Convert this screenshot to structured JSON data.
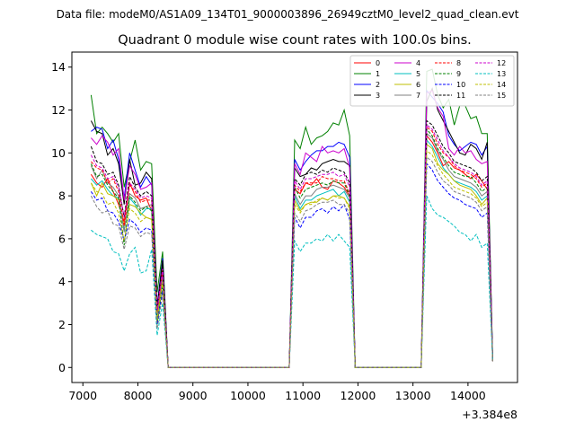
{
  "suptitle": "Data file: modeM0/AS1A09_134T01_9000003896_26949cztM0_level2_quad_clean.evt",
  "chart_data": {
    "type": "line",
    "title": "Quadrant 0 module wise count rates with 100.0s bins.",
    "xlabel": "",
    "ylabel": "",
    "offset_label": "+3.384e8",
    "xlim": [
      6800,
      14900
    ],
    "ylim": [
      -0.7,
      14.7
    ],
    "xticks": [
      7000,
      8000,
      9000,
      10000,
      11000,
      12000,
      13000,
      14000
    ],
    "yticks": [
      0,
      2,
      4,
      6,
      8,
      10,
      12,
      14
    ],
    "grid": false,
    "legend_position": "top-right",
    "legend_columns": 4,
    "x_start": 7150,
    "x_step": 100,
    "series": [
      {
        "name": "0",
        "color": "#ff0000",
        "dash": "solid",
        "values": [
          9.0,
          8.6,
          8.4,
          8.8,
          8.2,
          7.6,
          6.8,
          8.6,
          8.0,
          7.8,
          7.9,
          7.3,
          2.7,
          4.6,
          0,
          0,
          0,
          0,
          0,
          0,
          0,
          0,
          0,
          0,
          0,
          0,
          0,
          0,
          0,
          0,
          0,
          0,
          0,
          0,
          0,
          0,
          0,
          8.3,
          8.1,
          8.6,
          8.5,
          8.8,
          8.4,
          8.3,
          8.7,
          8.6,
          8.4,
          8.0,
          0,
          0,
          0,
          0,
          0,
          0,
          0,
          0,
          0,
          0,
          0,
          0,
          0,
          10.8,
          10.5,
          10.0,
          9.4,
          9.6,
          9.3,
          9.2,
          9.0,
          8.8,
          9.0,
          8.7,
          8.3,
          0.3
        ]
      },
      {
        "name": "1",
        "color": "#008000",
        "dash": "solid",
        "values": [
          12.7,
          10.9,
          11.2,
          10.9,
          10.5,
          10.9,
          8.4,
          9.6,
          10.6,
          9.2,
          9.6,
          9.5,
          3.5,
          5.4,
          0,
          0,
          0,
          0,
          0,
          0,
          0,
          0,
          0,
          0,
          0,
          0,
          0,
          0,
          0,
          0,
          0,
          0,
          0,
          0,
          0,
          0,
          0,
          10.6,
          10.2,
          11.2,
          10.4,
          10.7,
          10.8,
          11.0,
          11.4,
          11.3,
          12.0,
          10.8,
          0,
          0,
          0,
          0,
          0,
          0,
          0,
          0,
          0,
          0,
          0,
          0,
          0,
          13.8,
          13.9,
          12.7,
          12.1,
          12.5,
          11.3,
          12.2,
          12.2,
          11.6,
          11.7,
          10.9,
          10.9,
          0.4
        ]
      },
      {
        "name": "2",
        "color": "#0000ff",
        "dash": "solid",
        "values": [
          11.0,
          11.2,
          11.1,
          10.2,
          10.6,
          9.7,
          7.9,
          10.0,
          9.2,
          8.4,
          8.9,
          8.5,
          2.9,
          5.1,
          0,
          0,
          0,
          0,
          0,
          0,
          0,
          0,
          0,
          0,
          0,
          0,
          0,
          0,
          0,
          0,
          0,
          0,
          0,
          0,
          0,
          0,
          0,
          9.7,
          9.2,
          9.6,
          9.9,
          10.1,
          10.1,
          10.3,
          10.3,
          10.5,
          10.4,
          9.8,
          0,
          0,
          0,
          0,
          0,
          0,
          0,
          0,
          0,
          0,
          0,
          0,
          0,
          12.9,
          12.6,
          12.3,
          11.9,
          10.8,
          10.4,
          10.1,
          10.3,
          10.5,
          10.4,
          9.9,
          10.3,
          0.3
        ]
      },
      {
        "name": "3",
        "color": "#000000",
        "dash": "solid",
        "values": [
          11.5,
          11.0,
          10.9,
          9.9,
          10.2,
          9.5,
          7.6,
          9.7,
          8.5,
          8.6,
          9.1,
          8.8,
          2.8,
          5.0,
          0,
          0,
          0,
          0,
          0,
          0,
          0,
          0,
          0,
          0,
          0,
          0,
          0,
          0,
          0,
          0,
          0,
          0,
          0,
          0,
          0,
          0,
          0,
          9.3,
          8.9,
          9.0,
          9.3,
          9.2,
          9.5,
          9.6,
          9.7,
          9.6,
          9.6,
          9.4,
          0,
          0,
          0,
          0,
          0,
          0,
          0,
          0,
          0,
          0,
          0,
          0,
          0,
          12.4,
          13.0,
          12.0,
          11.5,
          11.0,
          10.5,
          10.0,
          9.9,
          10.4,
          10.2,
          9.7,
          10.5,
          0.3
        ]
      },
      {
        "name": "4",
        "color": "#cc00cc",
        "dash": "solid",
        "values": [
          10.7,
          10.4,
          10.8,
          10.5,
          9.9,
          10.2,
          7.8,
          9.4,
          9.0,
          8.3,
          8.4,
          8.6,
          2.7,
          4.4,
          0,
          0,
          0,
          0,
          0,
          0,
          0,
          0,
          0,
          0,
          0,
          0,
          0,
          0,
          0,
          0,
          0,
          0,
          0,
          0,
          0,
          0,
          0,
          9.5,
          9.0,
          10.0,
          9.8,
          9.6,
          10.3,
          10.0,
          10.1,
          10.0,
          10.2,
          9.3,
          0,
          0,
          0,
          0,
          0,
          0,
          0,
          0,
          0,
          0,
          0,
          0,
          0,
          12.8,
          12.9,
          12.1,
          11.7,
          10.2,
          9.9,
          10.3,
          10.0,
          10.1,
          9.7,
          9.5,
          9.6,
          0.3
        ]
      },
      {
        "name": "5",
        "color": "#00bfbf",
        "dash": "solid",
        "values": [
          8.8,
          8.5,
          8.7,
          8.3,
          8.0,
          7.9,
          6.4,
          7.9,
          7.6,
          7.1,
          7.4,
          7.4,
          2.2,
          4.1,
          0,
          0,
          0,
          0,
          0,
          0,
          0,
          0,
          0,
          0,
          0,
          0,
          0,
          0,
          0,
          0,
          0,
          0,
          0,
          0,
          0,
          0,
          0,
          8.0,
          7.4,
          7.8,
          7.8,
          8.0,
          8.1,
          8.2,
          8.3,
          8.0,
          8.2,
          7.7,
          0,
          0,
          0,
          0,
          0,
          0,
          0,
          0,
          0,
          0,
          0,
          0,
          0,
          10.6,
          10.3,
          9.8,
          9.3,
          9.0,
          8.7,
          8.6,
          8.5,
          8.4,
          8.2,
          7.8,
          8.0,
          0.3
        ]
      },
      {
        "name": "6",
        "color": "#bfbf00",
        "dash": "solid",
        "values": [
          8.6,
          8.0,
          8.6,
          8.1,
          8.0,
          7.8,
          6.6,
          7.6,
          7.5,
          7.2,
          7.0,
          6.9,
          2.3,
          4.0,
          0,
          0,
          0,
          0,
          0,
          0,
          0,
          0,
          0,
          0,
          0,
          0,
          0,
          0,
          0,
          0,
          0,
          0,
          0,
          0,
          0,
          0,
          0,
          7.8,
          7.3,
          7.6,
          7.7,
          7.7,
          7.9,
          7.8,
          8.0,
          8.0,
          7.9,
          7.5,
          0,
          0,
          0,
          0,
          0,
          0,
          0,
          0,
          0,
          0,
          0,
          0,
          0,
          10.4,
          10.2,
          9.5,
          9.2,
          9.0,
          8.7,
          8.5,
          8.4,
          8.3,
          8.0,
          7.6,
          7.9,
          0.3
        ]
      },
      {
        "name": "7",
        "color": "#808080",
        "dash": "solid",
        "values": [
          9.4,
          8.8,
          9.2,
          8.6,
          8.4,
          8.0,
          6.3,
          8.1,
          7.9,
          7.4,
          7.5,
          7.6,
          2.4,
          4.2,
          0,
          0,
          0,
          0,
          0,
          0,
          0,
          0,
          0,
          0,
          0,
          0,
          0,
          0,
          0,
          0,
          0,
          0,
          0,
          0,
          0,
          0,
          0,
          8.1,
          7.6,
          8.0,
          8.0,
          8.3,
          8.4,
          8.4,
          8.5,
          8.4,
          8.3,
          7.9,
          0,
          0,
          0,
          0,
          0,
          0,
          0,
          0,
          0,
          0,
          0,
          0,
          0,
          10.9,
          10.7,
          10.1,
          9.7,
          9.2,
          8.9,
          8.8,
          8.7,
          8.6,
          8.4,
          8.0,
          8.2,
          0.3
        ]
      },
      {
        "name": "8",
        "color": "#ff0000",
        "dash": "dashed",
        "values": [
          9.6,
          9.3,
          9.2,
          8.6,
          8.8,
          8.2,
          6.6,
          8.5,
          8.2,
          7.7,
          7.8,
          7.8,
          2.6,
          4.5,
          0,
          0,
          0,
          0,
          0,
          0,
          0,
          0,
          0,
          0,
          0,
          0,
          0,
          0,
          0,
          0,
          0,
          0,
          0,
          0,
          0,
          0,
          0,
          8.5,
          8.2,
          8.6,
          8.6,
          8.6,
          8.9,
          8.8,
          8.8,
          8.7,
          8.7,
          8.1,
          0,
          0,
          0,
          0,
          0,
          0,
          0,
          0,
          0,
          0,
          0,
          0,
          0,
          11.2,
          11.0,
          10.4,
          10.0,
          9.8,
          9.4,
          9.2,
          9.1,
          9.0,
          8.8,
          8.4,
          8.6,
          0.3
        ]
      },
      {
        "name": "9",
        "color": "#008000",
        "dash": "dashed",
        "values": [
          9.5,
          8.9,
          9.0,
          8.5,
          8.2,
          7.9,
          5.7,
          8.0,
          7.7,
          7.3,
          7.5,
          7.3,
          2.0,
          3.9,
          0,
          0,
          0,
          0,
          0,
          0,
          0,
          0,
          0,
          0,
          0,
          0,
          0,
          0,
          0,
          0,
          0,
          0,
          0,
          0,
          0,
          0,
          0,
          8.4,
          7.9,
          8.3,
          8.4,
          8.5,
          8.6,
          8.5,
          8.7,
          8.6,
          8.6,
          8.0,
          0,
          0,
          0,
          0,
          0,
          0,
          0,
          0,
          0,
          0,
          0,
          0,
          0,
          11.1,
          10.8,
          10.2,
          9.8,
          9.4,
          9.1,
          9.0,
          8.9,
          8.9,
          8.6,
          8.2,
          8.4,
          0.3
        ]
      },
      {
        "name": "10",
        "color": "#0000ff",
        "dash": "dashed",
        "values": [
          8.2,
          7.8,
          7.9,
          7.3,
          7.2,
          6.8,
          5.9,
          6.9,
          6.7,
          6.3,
          6.5,
          6.4,
          2.0,
          3.6,
          0,
          0,
          0,
          0,
          0,
          0,
          0,
          0,
          0,
          0,
          0,
          0,
          0,
          0,
          0,
          0,
          0,
          0,
          0,
          0,
          0,
          0,
          0,
          7.0,
          6.5,
          7.0,
          7.0,
          7.3,
          7.4,
          7.2,
          7.5,
          7.3,
          7.6,
          6.9,
          0,
          0,
          0,
          0,
          0,
          0,
          0,
          0,
          0,
          0,
          0,
          0,
          0,
          9.5,
          9.2,
          8.7,
          8.4,
          8.1,
          7.9,
          7.8,
          7.6,
          7.5,
          7.4,
          7.0,
          7.2,
          0.3
        ]
      },
      {
        "name": "11",
        "color": "#000000",
        "dash": "dashed",
        "values": [
          10.3,
          9.6,
          9.5,
          9.0,
          9.1,
          8.5,
          7.0,
          8.9,
          8.4,
          8.0,
          8.2,
          8.0,
          2.8,
          4.8,
          0,
          0,
          0,
          0,
          0,
          0,
          0,
          0,
          0,
          0,
          0,
          0,
          0,
          0,
          0,
          0,
          0,
          0,
          0,
          0,
          0,
          0,
          0,
          8.8,
          8.5,
          9.0,
          9.1,
          9.0,
          9.2,
          9.1,
          9.3,
          9.2,
          9.1,
          8.6,
          0,
          0,
          0,
          0,
          0,
          0,
          0,
          0,
          0,
          0,
          0,
          0,
          0,
          11.5,
          11.3,
          10.8,
          10.3,
          10.0,
          9.6,
          9.5,
          9.4,
          9.3,
          9.1,
          8.7,
          8.9,
          0.3
        ]
      },
      {
        "name": "12",
        "color": "#cc00cc",
        "dash": "dashed",
        "values": [
          9.9,
          9.4,
          9.3,
          8.8,
          8.9,
          8.4,
          7.0,
          8.6,
          8.3,
          7.9,
          8.0,
          7.9,
          2.7,
          4.6,
          0,
          0,
          0,
          0,
          0,
          0,
          0,
          0,
          0,
          0,
          0,
          0,
          0,
          0,
          0,
          0,
          0,
          0,
          0,
          0,
          0,
          0,
          0,
          8.7,
          8.3,
          8.8,
          8.8,
          8.9,
          9.0,
          9.0,
          9.1,
          8.9,
          9.0,
          8.4,
          0,
          0,
          0,
          0,
          0,
          0,
          0,
          0,
          0,
          0,
          0,
          0,
          0,
          11.3,
          11.1,
          10.6,
          10.1,
          9.8,
          9.5,
          9.3,
          9.2,
          9.1,
          8.9,
          8.5,
          8.7,
          0.3
        ]
      },
      {
        "name": "13",
        "color": "#00bfbf",
        "dash": "dashed",
        "values": [
          6.4,
          6.2,
          6.1,
          6.0,
          5.4,
          5.3,
          4.5,
          5.3,
          5.6,
          4.4,
          4.5,
          5.5,
          1.5,
          3.0,
          0,
          0,
          0,
          0,
          0,
          0,
          0,
          0,
          0,
          0,
          0,
          0,
          0,
          0,
          0,
          0,
          0,
          0,
          0,
          0,
          0,
          0,
          0,
          5.9,
          5.4,
          5.8,
          5.8,
          6.0,
          5.9,
          6.2,
          5.9,
          6.2,
          5.9,
          5.6,
          0,
          0,
          0,
          0,
          0,
          0,
          0,
          0,
          0,
          0,
          0,
          0,
          0,
          8.0,
          7.4,
          7.1,
          7.0,
          6.8,
          6.6,
          6.3,
          6.2,
          5.9,
          6.2,
          5.6,
          5.8,
          0.3
        ]
      },
      {
        "name": "14",
        "color": "#bfbf00",
        "dash": "dashed",
        "values": [
          8.6,
          8.2,
          8.1,
          7.6,
          7.7,
          7.2,
          5.9,
          7.4,
          7.2,
          6.8,
          7.0,
          6.9,
          2.2,
          4.0,
          0,
          0,
          0,
          0,
          0,
          0,
          0,
          0,
          0,
          0,
          0,
          0,
          0,
          0,
          0,
          0,
          0,
          0,
          0,
          0,
          0,
          0,
          0,
          7.6,
          7.2,
          7.6,
          7.6,
          7.8,
          7.9,
          7.8,
          8.0,
          7.9,
          7.9,
          7.4,
          0,
          0,
          0,
          0,
          0,
          0,
          0,
          0,
          0,
          0,
          0,
          0,
          0,
          10.1,
          9.9,
          9.4,
          9.0,
          8.7,
          8.4,
          8.3,
          8.2,
          8.1,
          7.9,
          7.5,
          7.7,
          0.3
        ]
      },
      {
        "name": "15",
        "color": "#808080",
        "dash": "dashed",
        "values": [
          8.0,
          7.5,
          7.2,
          7.3,
          6.7,
          6.6,
          5.5,
          6.6,
          6.5,
          6.1,
          6.3,
          6.2,
          1.8,
          3.4,
          0,
          0,
          0,
          0,
          0,
          0,
          0,
          0,
          0,
          0,
          0,
          0,
          0,
          0,
          0,
          0,
          0,
          0,
          0,
          0,
          0,
          0,
          0,
          7.2,
          6.8,
          7.3,
          7.4,
          7.6,
          7.7,
          7.7,
          7.8,
          7.6,
          7.6,
          7.2,
          0,
          0,
          0,
          0,
          0,
          0,
          0,
          0,
          0,
          0,
          0,
          0,
          0,
          9.8,
          9.6,
          9.1,
          8.7,
          8.5,
          8.2,
          8.1,
          8.0,
          7.9,
          7.7,
          7.3,
          7.5,
          0.3
        ]
      }
    ]
  }
}
